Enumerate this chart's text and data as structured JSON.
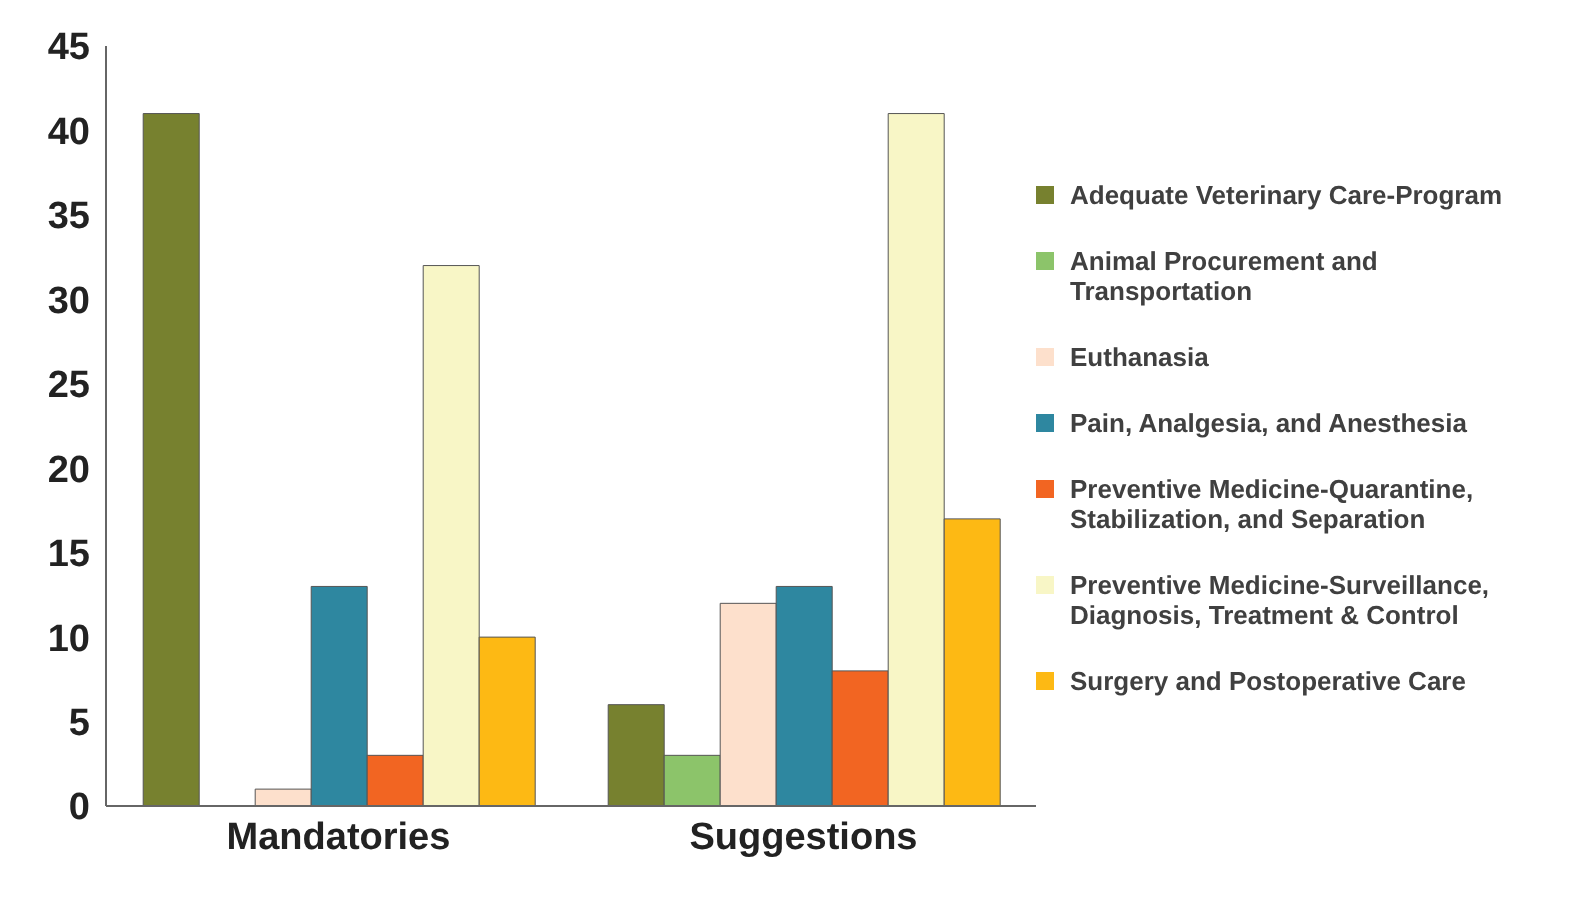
{
  "chart_data": {
    "type": "bar",
    "categories": [
      "Mandatories",
      "Suggestions"
    ],
    "series": [
      {
        "name": "Adequate Veterinary Care-Program",
        "color": "#77812f",
        "values": [
          41,
          6
        ]
      },
      {
        "name": "Animal Procurement and Transportation",
        "color": "#8cc46a",
        "values": [
          0,
          3
        ]
      },
      {
        "name": "Euthanasia",
        "color": "#fde0cc",
        "values": [
          1,
          12
        ]
      },
      {
        "name": "Pain, Analgesia, and Anesthesia",
        "color": "#2e87a0",
        "values": [
          13,
          13
        ]
      },
      {
        "name": "Preventive Medicine-Quarantine, Stabilization, and Separation",
        "color": "#f26522",
        "values": [
          3,
          8
        ]
      },
      {
        "name": "Preventive Medicine-Surveillance, Diagnosis, Treatment & Control",
        "color": "#f8f6c6",
        "values": [
          32,
          41
        ]
      },
      {
        "name": "Surgery and Postoperative Care",
        "color": "#fdb914",
        "values": [
          10,
          17
        ]
      }
    ],
    "ylim": [
      0,
      45
    ],
    "yticks": [
      0,
      5,
      10,
      15,
      20,
      25,
      30,
      35,
      40,
      45
    ],
    "grid": false,
    "legend": "right"
  }
}
